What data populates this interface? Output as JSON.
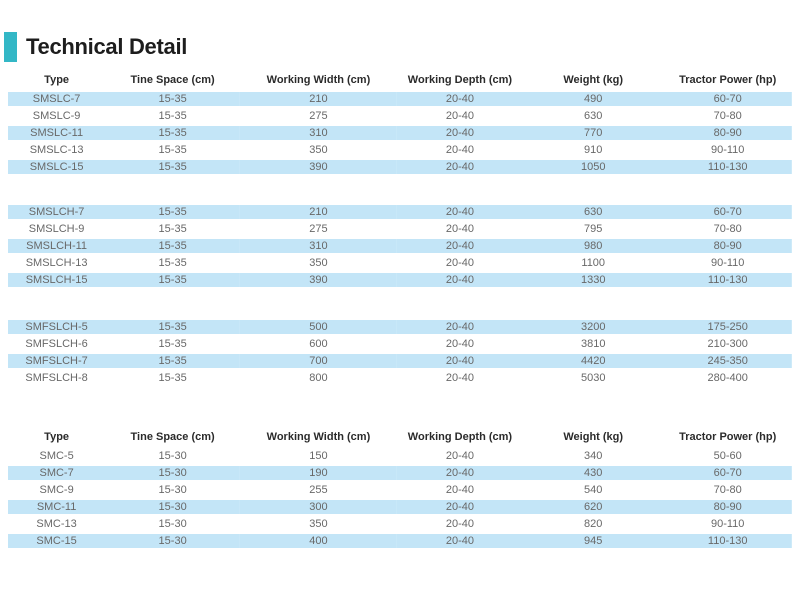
{
  "title": "Technical Detail",
  "colors": {
    "accent": "#33b7c6",
    "row_highlight": "#c3e5f7",
    "header_text": "#2b2b2b",
    "cell_text": "#686868"
  },
  "tables": [
    {
      "name": "smslc-series-table",
      "columns": [
        "Type",
        "Tine Space (cm)",
        "Working Width (cm)",
        "Working Depth (cm)",
        "Weight (kg)",
        "Tractor Power (hp)"
      ],
      "zebra": "first-shaded",
      "groups": [
        {
          "rows": [
            [
              "SMSLC-7",
              "15-35",
              "210",
              "20-40",
              "490",
              "60-70"
            ],
            [
              "SMSLC-9",
              "15-35",
              "275",
              "20-40",
              "630",
              "70-80"
            ],
            [
              "SMSLC-11",
              "15-35",
              "310",
              "20-40",
              "770",
              "80-90"
            ],
            [
              "SMSLC-13",
              "15-35",
              "350",
              "20-40",
              "910",
              "90-110"
            ],
            [
              "SMSLC-15",
              "15-35",
              "390",
              "20-40",
              "1050",
              "110-130"
            ]
          ]
        },
        {
          "rows": [
            [
              "SMSLCH-7",
              "15-35",
              "210",
              "20-40",
              "630",
              "60-70"
            ],
            [
              "SMSLCH-9",
              "15-35",
              "275",
              "20-40",
              "795",
              "70-80"
            ],
            [
              "SMSLCH-11",
              "15-35",
              "310",
              "20-40",
              "980",
              "80-90"
            ],
            [
              "SMSLCH-13",
              "15-35",
              "350",
              "20-40",
              "1100",
              "90-110"
            ],
            [
              "SMSLCH-15",
              "15-35",
              "390",
              "20-40",
              "1330",
              "110-130"
            ]
          ]
        },
        {
          "rows": [
            [
              "SMFSLCH-5",
              "15-35",
              "500",
              "20-40",
              "3200",
              "175-250"
            ],
            [
              "SMFSLCH-6",
              "15-35",
              "600",
              "20-40",
              "3810",
              "210-300"
            ],
            [
              "SMFSLCH-7",
              "15-35",
              "700",
              "20-40",
              "4420",
              "245-350"
            ],
            [
              "SMFSLCH-8",
              "15-35",
              "800",
              "20-40",
              "5030",
              "280-400"
            ]
          ]
        }
      ]
    },
    {
      "name": "smc-series-table",
      "columns": [
        "Type",
        "Tine Space (cm)",
        "Working Width (cm)",
        "Working Depth (cm)",
        "Weight (kg)",
        "Tractor Power (hp)"
      ],
      "zebra": "second-shaded",
      "groups": [
        {
          "rows": [
            [
              "SMC-5",
              "15-30",
              "150",
              "20-40",
              "340",
              "50-60"
            ],
            [
              "SMC-7",
              "15-30",
              "190",
              "20-40",
              "430",
              "60-70"
            ],
            [
              "SMC-9",
              "15-30",
              "255",
              "20-40",
              "540",
              "70-80"
            ],
            [
              "SMC-11",
              "15-30",
              "300",
              "20-40",
              "620",
              "80-90"
            ],
            [
              "SMC-13",
              "15-30",
              "350",
              "20-40",
              "820",
              "90-110"
            ],
            [
              "SMC-15",
              "15-30",
              "400",
              "20-40",
              "945",
              "110-130"
            ]
          ]
        }
      ]
    }
  ]
}
